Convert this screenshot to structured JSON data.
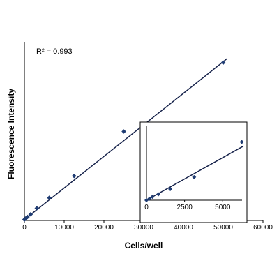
{
  "chart_data": [
    {
      "type": "scatter",
      "role": "main",
      "xlabel": "Cells/well",
      "ylabel": "Fluorescence Intensity",
      "annotation": "R² = 0.993",
      "xlim": [
        0,
        60000
      ],
      "xticks": [
        0,
        10000,
        20000,
        30000,
        40000,
        50000,
        60000
      ],
      "ylim": [
        0,
        1
      ],
      "y_tick_labels_shown": false,
      "grid": false,
      "legend": "none",
      "trendline": "linear",
      "marker": "diamond",
      "marker_color": "#1f3c73",
      "line_color": "#16224a",
      "series": [
        {
          "points": [
            [
              0,
              0.005
            ],
            [
              195,
              0.009
            ],
            [
              390,
              0.013
            ],
            [
              780,
              0.02
            ],
            [
              1560,
              0.035
            ],
            [
              3125,
              0.07
            ],
            [
              6250,
              0.13
            ],
            [
              12500,
              0.255
            ],
            [
              25000,
              0.51
            ],
            [
              50000,
              0.905
            ]
          ]
        }
      ],
      "fit": {
        "intercept": 0.005,
        "slope": 1.81e-05
      }
    },
    {
      "type": "scatter",
      "role": "inset",
      "xlim": [
        0,
        7000
      ],
      "xticks": [
        0,
        2500,
        5000
      ],
      "ylim": [
        0,
        1
      ],
      "y_tick_labels_shown": false,
      "trendline": "linear",
      "marker": "diamond",
      "marker_color": "#1f3c73",
      "line_color": "#16224a",
      "series": [
        {
          "points": [
            [
              0,
              0.0
            ],
            [
              195,
              0.02
            ],
            [
              390,
              0.045
            ],
            [
              780,
              0.08
            ],
            [
              1560,
              0.15
            ],
            [
              3125,
              0.31
            ],
            [
              6250,
              0.78
            ]
          ]
        }
      ],
      "fit": {
        "intercept": 0.0,
        "slope": 0.000114
      }
    }
  ]
}
